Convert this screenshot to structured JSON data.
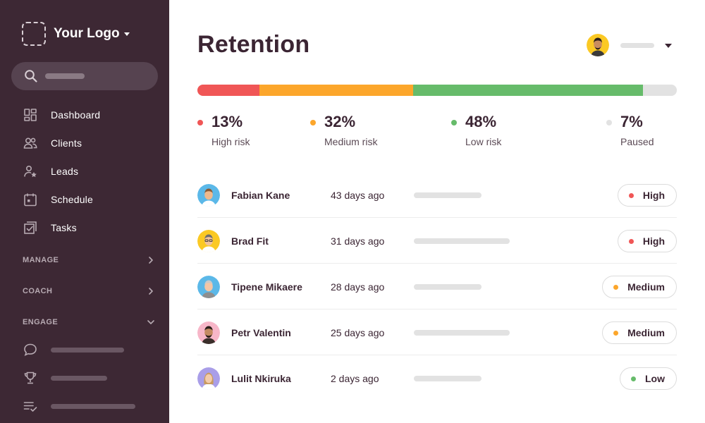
{
  "sidebar": {
    "logo_text": "Your Logo",
    "nav": [
      {
        "label": "Dashboard",
        "icon": "dashboard-icon"
      },
      {
        "label": "Clients",
        "icon": "clients-icon"
      },
      {
        "label": "Leads",
        "icon": "leads-icon"
      },
      {
        "label": "Schedule",
        "icon": "calendar-icon"
      },
      {
        "label": "Tasks",
        "icon": "tasks-icon"
      }
    ],
    "sections": [
      {
        "label": "MANAGE",
        "state": "collapsed"
      },
      {
        "label": "COACH",
        "state": "collapsed"
      },
      {
        "label": "ENGAGE",
        "state": "expanded"
      }
    ],
    "engage_icons": [
      "chat-icon",
      "trophy-icon",
      "checklist-icon"
    ]
  },
  "header": {
    "title": "Retention"
  },
  "retention": {
    "segments": [
      {
        "value": "13%",
        "label": "High risk",
        "percent": 13,
        "color": "#f05656"
      },
      {
        "value": "32%",
        "label": "Medium risk",
        "percent": 32,
        "color": "#fca62b"
      },
      {
        "value": "48%",
        "label": "Low risk",
        "percent": 48,
        "color": "#66bb6a"
      },
      {
        "value": "7%",
        "label": "Paused",
        "percent": 7,
        "color": "#e2e2e2"
      }
    ]
  },
  "clients": [
    {
      "name": "Fabian Kane",
      "time": "43 days ago",
      "risk": "High",
      "risk_color": "#f05656",
      "avatar_bg": "#5bb8e8"
    },
    {
      "name": "Brad Fit",
      "time": "31 days ago",
      "risk": "High",
      "risk_color": "#f05656",
      "avatar_bg": "#fbc924"
    },
    {
      "name": "Tipene Mikaere",
      "time": "28 days ago",
      "risk": "Medium",
      "risk_color": "#fca62b",
      "avatar_bg": "#5bb8e8"
    },
    {
      "name": "Petr Valentin",
      "time": "25 days ago",
      "risk": "Medium",
      "risk_color": "#fca62b",
      "avatar_bg": "#f7b6c8"
    },
    {
      "name": "Lulit Nkiruka",
      "time": "2 days ago",
      "risk": "Low",
      "risk_color": "#66bb6a",
      "avatar_bg": "#a99ee8"
    }
  ]
}
